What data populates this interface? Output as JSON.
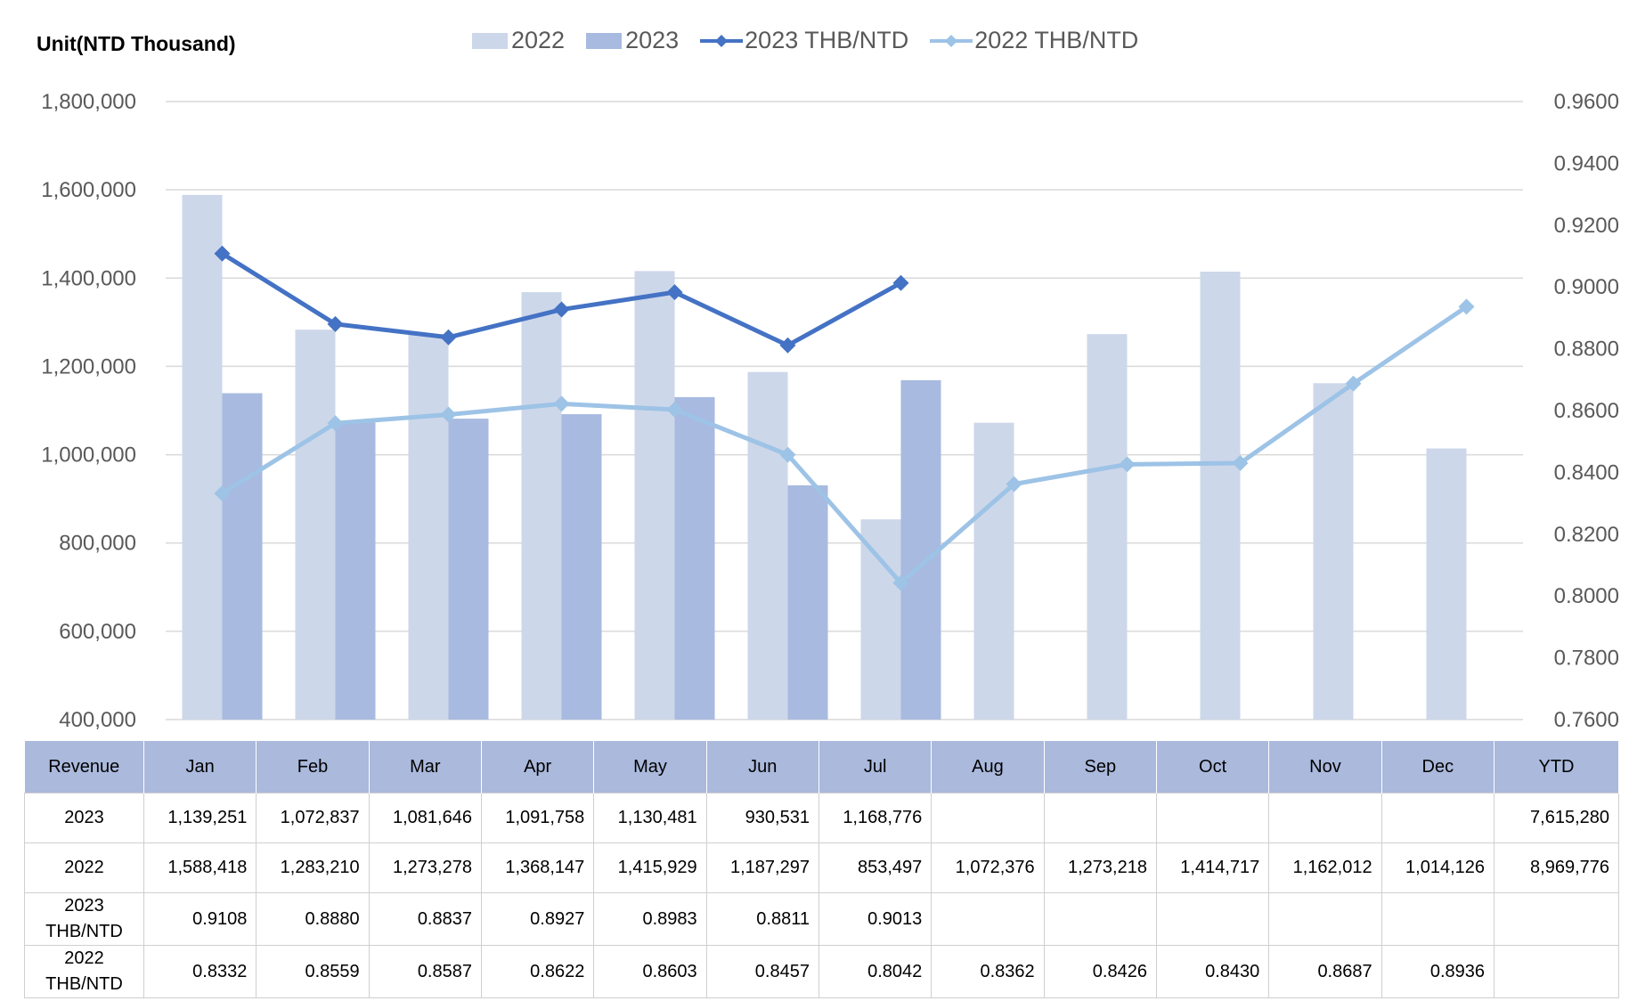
{
  "unit_label": "Unit(NTD  Thousand)",
  "colors": {
    "bar_2022": "#cdd7ea",
    "bar_2023": "#a8badf",
    "line_2023": "#4472c4",
    "line_2022": "#9dc3e6",
    "gridline": "#d9d9d9",
    "table_header": "#aab9dc"
  },
  "chart_data": {
    "type": "bar",
    "categories": [
      "Jan",
      "Feb",
      "Mar",
      "Apr",
      "May",
      "Jun",
      "Jul",
      "Aug",
      "Sep",
      "Oct",
      "Nov",
      "Dec"
    ],
    "legend_position": "top",
    "grid": true,
    "series": [
      {
        "name": "2022",
        "type": "bar",
        "axis": "left",
        "values": [
          1588418,
          1283210,
          1273278,
          1368147,
          1415929,
          1187297,
          853497,
          1072376,
          1273218,
          1414717,
          1162012,
          1014126
        ]
      },
      {
        "name": "2023",
        "type": "bar",
        "axis": "left",
        "values": [
          1139251,
          1072837,
          1081646,
          1091758,
          1130481,
          930531,
          1168776,
          null,
          null,
          null,
          null,
          null
        ]
      },
      {
        "name": "2023 THB/NTD",
        "type": "line",
        "marker": "diamond",
        "axis": "right",
        "values": [
          0.9108,
          0.888,
          0.8837,
          0.8927,
          0.8983,
          0.8811,
          0.9013,
          null,
          null,
          null,
          null,
          null
        ]
      },
      {
        "name": "2022 THB/NTD",
        "type": "line",
        "marker": "diamond",
        "axis": "right",
        "values": [
          0.8332,
          0.8559,
          0.8587,
          0.8622,
          0.8603,
          0.8457,
          0.8042,
          0.8362,
          0.8426,
          0.843,
          0.8687,
          0.8936
        ]
      }
    ],
    "y_left": {
      "min": 400000,
      "max": 1800000,
      "ticks": [
        "400,000",
        "600,000",
        "800,000",
        "1,000,000",
        "1,200,000",
        "1,400,000",
        "1,600,000",
        "1,800,000"
      ]
    },
    "y_right": {
      "min": 0.76,
      "max": 0.96,
      "ticks": [
        "0.7600",
        "0.7800",
        "0.8000",
        "0.8200",
        "0.8400",
        "0.8600",
        "0.8800",
        "0.9000",
        "0.9200",
        "0.9400",
        "0.9600"
      ]
    }
  },
  "table": {
    "header": [
      "Revenue",
      "Jan",
      "Feb",
      "Mar",
      "Apr",
      "May",
      "Jun",
      "Jul",
      "Aug",
      "Sep",
      "Oct",
      "Nov",
      "Dec",
      "YTD"
    ],
    "rows": [
      [
        "2023",
        "1,139,251",
        "1,072,837",
        "1,081,646",
        "1,091,758",
        "1,130,481",
        "930,531",
        "1,168,776",
        "",
        "",
        "",
        "",
        "",
        "7,615,280"
      ],
      [
        "2022",
        "1,588,418",
        "1,283,210",
        "1,273,278",
        "1,368,147",
        "1,415,929",
        "1,187,297",
        "853,497",
        "1,072,376",
        "1,273,218",
        "1,414,717",
        "1,162,012",
        "1,014,126",
        "8,969,776"
      ],
      [
        "2023 THB/NTD",
        "0.9108",
        "0.8880",
        "0.8837",
        "0.8927",
        "0.8983",
        "0.8811",
        "0.9013",
        "",
        "",
        "",
        "",
        "",
        ""
      ],
      [
        "2022 THB/NTD",
        "0.8332",
        "0.8559",
        "0.8587",
        "0.8622",
        "0.8603",
        "0.8457",
        "0.8042",
        "0.8362",
        "0.8426",
        "0.8430",
        "0.8687",
        "0.8936",
        ""
      ]
    ]
  }
}
